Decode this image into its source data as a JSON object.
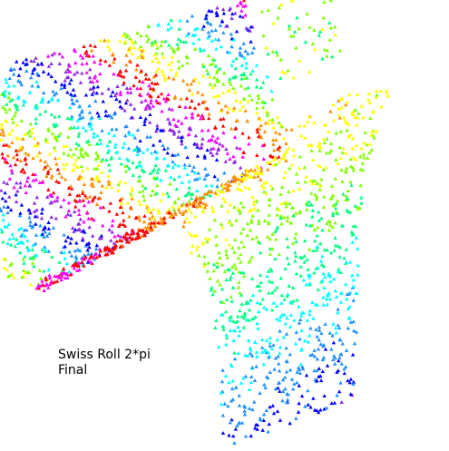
{
  "caption": {
    "line1": "Swiss Roll 2*pi",
    "line2": "Final"
  },
  "chart_data": {
    "type": "scatter",
    "title": "Swiss Roll 2*pi",
    "subtitle": "Final",
    "xlabel": "",
    "ylabel": "",
    "grid": false,
    "axes_visible": false,
    "legend": "none",
    "marker": "triangle",
    "color_map": "hsv",
    "color_stops": [
      "#ff0000",
      "#ff8c00",
      "#ffff00",
      "#7fff00",
      "#00ff7f",
      "#00ffff",
      "#1e90ff",
      "#0000ff",
      "#8a2be2",
      "#ff00ff"
    ],
    "note_points_description": "Synthetic point cloud of a swiss-roll embedding; color encodes position along the roll.",
    "point_count": 2400
  }
}
